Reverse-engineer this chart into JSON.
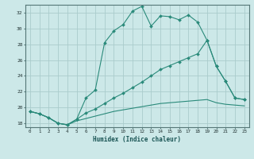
{
  "xlabel": "Humidex (Indice chaleur)",
  "background_color": "#cce8e8",
  "grid_color": "#aacccc",
  "line_color": "#2a8a7a",
  "xlim": [
    -0.5,
    23.5
  ],
  "ylim": [
    17.5,
    33.0
  ],
  "yticks": [
    18,
    20,
    22,
    24,
    26,
    28,
    30,
    32
  ],
  "xticks": [
    0,
    1,
    2,
    3,
    4,
    5,
    6,
    7,
    8,
    9,
    10,
    11,
    12,
    13,
    14,
    15,
    16,
    17,
    18,
    19,
    20,
    21,
    22,
    23
  ],
  "line1_x": [
    0,
    1,
    2,
    3,
    4,
    5,
    6,
    7,
    8,
    9,
    10,
    11,
    12,
    13,
    14,
    15,
    16,
    17,
    18,
    19,
    20,
    21,
    22,
    23
  ],
  "line1_y": [
    19.5,
    19.2,
    18.7,
    18.0,
    17.8,
    18.5,
    21.2,
    22.2,
    28.2,
    29.7,
    30.5,
    32.2,
    32.8,
    30.3,
    31.6,
    31.5,
    31.1,
    31.7,
    30.8,
    28.5,
    25.2,
    23.3,
    21.2,
    21.0
  ],
  "line2_x": [
    0,
    1,
    2,
    3,
    4,
    5,
    6,
    7,
    8,
    9,
    10,
    11,
    12,
    13,
    14,
    15,
    16,
    17,
    18,
    19,
    20,
    21,
    22,
    23
  ],
  "line2_y": [
    19.5,
    19.2,
    18.7,
    18.0,
    17.8,
    18.5,
    19.3,
    19.8,
    20.5,
    21.2,
    21.8,
    22.5,
    23.2,
    24.0,
    24.8,
    25.3,
    25.8,
    26.3,
    26.8,
    28.5,
    25.2,
    23.3,
    21.2,
    21.0
  ],
  "line3_x": [
    0,
    1,
    2,
    3,
    4,
    5,
    6,
    7,
    8,
    9,
    10,
    11,
    12,
    13,
    14,
    15,
    16,
    17,
    18,
    19,
    20,
    21,
    22,
    23
  ],
  "line3_y": [
    19.5,
    19.2,
    18.7,
    18.0,
    17.8,
    18.3,
    18.6,
    18.9,
    19.2,
    19.5,
    19.7,
    19.9,
    20.1,
    20.3,
    20.5,
    20.6,
    20.7,
    20.8,
    20.9,
    21.0,
    20.6,
    20.4,
    20.3,
    20.2
  ]
}
